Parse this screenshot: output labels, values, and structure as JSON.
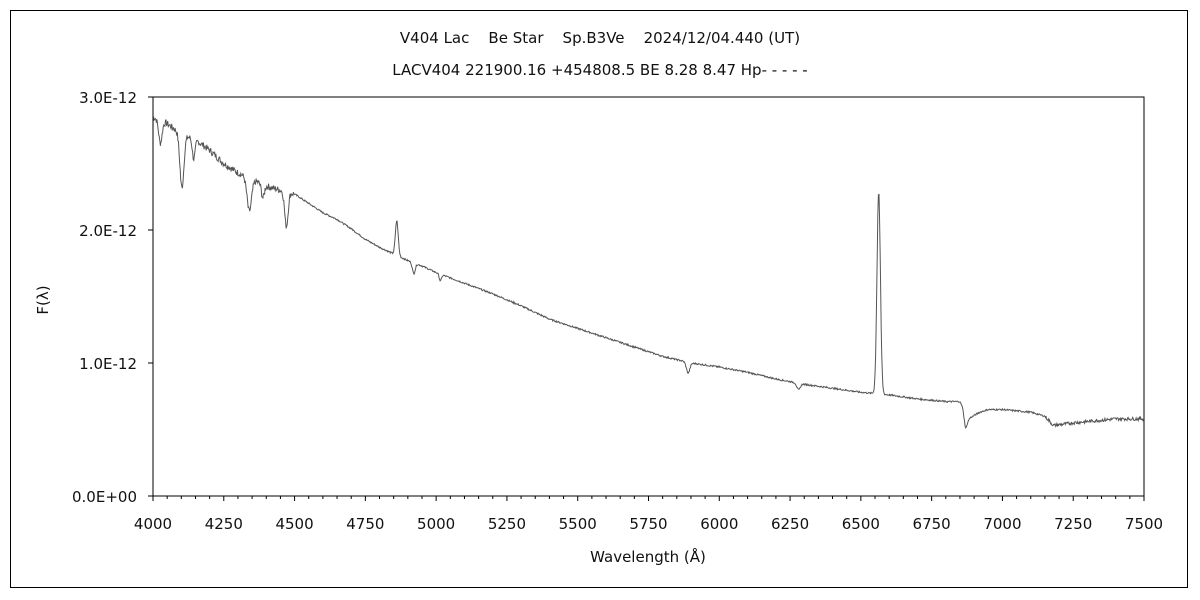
{
  "chart_data": {
    "type": "line",
    "title": "V404 Lac    Be Star    Sp.B3Ve    2024/12/04.440 (UT)",
    "subtitle": "LACV404 221900.16 +454808.5 BE 8.28 8.47 Hp- - - - -",
    "xlabel": "Wavelength (Å)",
    "ylabel": "F(λ)",
    "xlim": [
      4000,
      7500
    ],
    "ylim": [
      0,
      3e-12
    ],
    "x_ticks": [
      "4000",
      "4250",
      "4500",
      "4750",
      "5000",
      "5250",
      "5500",
      "5750",
      "6000",
      "6250",
      "6500",
      "6750",
      "7000",
      "7250",
      "7500"
    ],
    "y_ticks": [
      "0.0E+00",
      "1.0E-12",
      "2.0E-12",
      "3.0E-12"
    ],
    "grid": false,
    "series": [
      {
        "color": "#555555",
        "continuum": [
          [
            4000,
            2.85e-12
          ],
          [
            4050,
            2.8e-12
          ],
          [
            4100,
            2.72e-12
          ],
          [
            4150,
            2.68e-12
          ],
          [
            4200,
            2.6e-12
          ],
          [
            4250,
            2.5e-12
          ],
          [
            4300,
            2.43e-12
          ],
          [
            4350,
            2.38e-12
          ],
          [
            4400,
            2.33e-12
          ],
          [
            4450,
            2.3e-12
          ],
          [
            4500,
            2.27e-12
          ],
          [
            4550,
            2.2e-12
          ],
          [
            4600,
            2.13e-12
          ],
          [
            4650,
            2.08e-12
          ],
          [
            4700,
            2.01e-12
          ],
          [
            4750,
            1.93e-12
          ],
          [
            4800,
            1.87e-12
          ],
          [
            4850,
            1.82e-12
          ],
          [
            4900,
            1.77e-12
          ],
          [
            4950,
            1.73e-12
          ],
          [
            5000,
            1.68e-12
          ],
          [
            5100,
            1.6e-12
          ],
          [
            5200,
            1.52e-12
          ],
          [
            5300,
            1.43e-12
          ],
          [
            5400,
            1.33e-12
          ],
          [
            5500,
            1.26e-12
          ],
          [
            5600,
            1.19e-12
          ],
          [
            5700,
            1.12e-12
          ],
          [
            5800,
            1.05e-12
          ],
          [
            5900,
            1e-12
          ],
          [
            6000,
            9.7e-13
          ],
          [
            6100,
            9.3e-13
          ],
          [
            6200,
            8.8e-13
          ],
          [
            6300,
            8.4e-13
          ],
          [
            6400,
            8.1e-13
          ],
          [
            6500,
            7.8e-13
          ],
          [
            6600,
            7.6e-13
          ],
          [
            6700,
            7.3e-13
          ],
          [
            6800,
            7.1e-13
          ],
          [
            6850,
            7.1e-13
          ],
          [
            6880,
            5.8e-13
          ],
          [
            6920,
            6.3e-13
          ],
          [
            6950,
            6.5e-13
          ],
          [
            7000,
            6.5e-13
          ],
          [
            7100,
            6.3e-13
          ],
          [
            7150,
            6e-13
          ],
          [
            7180,
            5.3e-13
          ],
          [
            7250,
            5.5e-13
          ],
          [
            7300,
            5.6e-13
          ],
          [
            7400,
            5.8e-13
          ],
          [
            7500,
            5.8e-13
          ]
        ],
        "lines": [
          [
            4026,
            -1.7e-13,
            6
          ],
          [
            4102,
            -4e-13,
            7
          ],
          [
            4144,
            -1.5e-13,
            5
          ],
          [
            4340,
            -2.5e-13,
            8
          ],
          [
            4388,
            -1e-13,
            5
          ],
          [
            4471,
            -2.6e-13,
            6
          ],
          [
            4861,
            2.6e-13,
            5
          ],
          [
            4921,
            -8e-14,
            5
          ],
          [
            5015,
            -5e-14,
            4
          ],
          [
            5890,
            -8e-14,
            6
          ],
          [
            6280,
            -5e-14,
            6
          ],
          [
            6563,
            1.52e-12,
            6
          ],
          [
            6870,
            -1.1e-13,
            5
          ]
        ]
      }
    ]
  }
}
